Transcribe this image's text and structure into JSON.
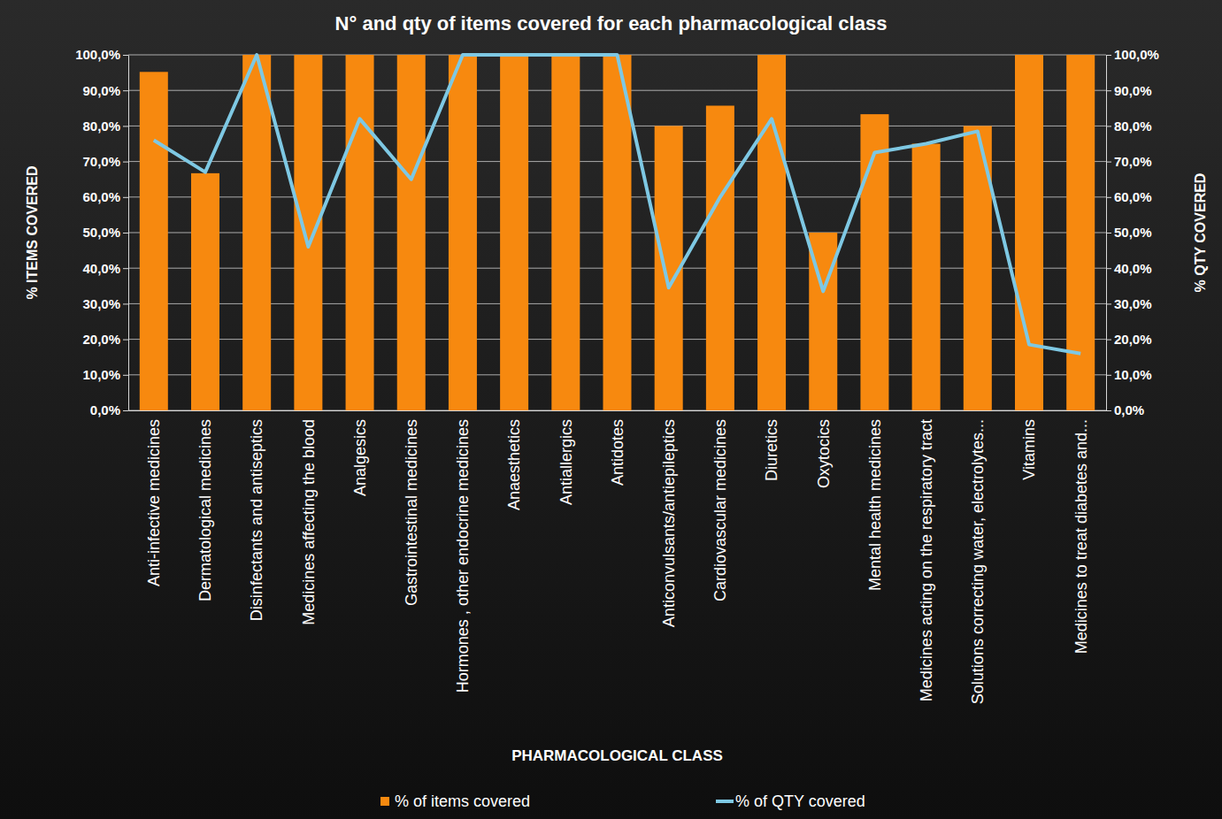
{
  "chart_data": {
    "type": "bar",
    "title": "N° and qty of items covered for each pharmacological class",
    "x_label": "PHARMACOLOGICAL CLASS",
    "y_label": "% ITEMS COVERED",
    "y2_label": "% QTY COVERED",
    "categories": [
      "Anti-infective medicines",
      "Dermatological medicines",
      "Disinfectants and antiseptics",
      "Medicines affecting the blood",
      "Analgesics",
      "Gastrointestinal medicines",
      "Hormones , other endocrine medicines",
      "Anaesthetics",
      "Antiallergics",
      "Antidotes",
      "Anticonvulsants/antiepileptics",
      "Cardiovascular medicines",
      "Diuretics",
      "Oxytocics",
      "Mental health medicines",
      "Medicines acting on the respiratory tract",
      "Solutions correcting water, electrolytes...",
      "Vitamins",
      "Medicines to treat diabetes and..."
    ],
    "series": [
      {
        "name": "% of items covered",
        "type": "bar",
        "color": "#f7890f",
        "axis": "y",
        "values": [
          95.2,
          66.7,
          100,
          100,
          100,
          100,
          100,
          100,
          100,
          100,
          80,
          85.7,
          100,
          50,
          83.3,
          75,
          80,
          100,
          100
        ]
      },
      {
        "name": "% of QTY covered",
        "type": "line",
        "color": "#7ec8e3",
        "axis": "y2",
        "values": [
          76,
          67,
          100,
          46,
          82,
          65,
          100,
          100,
          100,
          100,
          34.5,
          60,
          82,
          33.5,
          72.5,
          75,
          78.5,
          18.5,
          16
        ]
      }
    ],
    "ylim": [
      0,
      100
    ],
    "yticks": [
      {
        "value": 0,
        "label": "0,0%"
      },
      {
        "value": 10,
        "label": "10,0%"
      },
      {
        "value": 20,
        "label": "20,0%"
      },
      {
        "value": 30,
        "label": "30,0%"
      },
      {
        "value": 40,
        "label": "40,0%"
      },
      {
        "value": 50,
        "label": "50,0%"
      },
      {
        "value": 60,
        "label": "60,0%"
      },
      {
        "value": 70,
        "label": "70,0%"
      },
      {
        "value": 80,
        "label": "80,0%"
      },
      {
        "value": 90,
        "label": "90,0%"
      },
      {
        "value": 100,
        "label": "100,0%"
      }
    ],
    "y2lim": [
      0,
      100
    ],
    "y2ticks": [
      {
        "value": 0,
        "label": "0,0%"
      },
      {
        "value": 10,
        "label": "10,0%"
      },
      {
        "value": 20,
        "label": "20,0%"
      },
      {
        "value": 30,
        "label": "30,0%"
      },
      {
        "value": 40,
        "label": "40,0%"
      },
      {
        "value": 50,
        "label": "50,0%"
      },
      {
        "value": 60,
        "label": "60,0%"
      },
      {
        "value": 70,
        "label": "70,0%"
      },
      {
        "value": 80,
        "label": "80,0%"
      },
      {
        "value": 90,
        "label": "90,0%"
      },
      {
        "value": 100,
        "label": "100,0%"
      }
    ],
    "grid": true,
    "legend": "bottom"
  }
}
